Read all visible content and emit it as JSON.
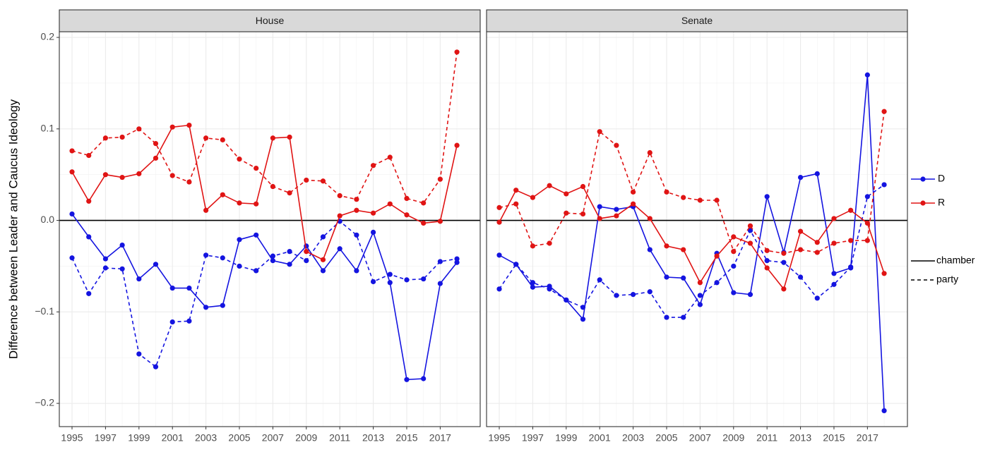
{
  "ylabel": "Difference between Leader and Caucus Ideology",
  "legend": {
    "color": [
      {
        "name": "D",
        "color": "#1414e0"
      },
      {
        "name": "R",
        "color": "#e01414"
      }
    ],
    "linetype": [
      {
        "name": "chamber",
        "dash": "solid"
      },
      {
        "name": "party",
        "dash": "dashed"
      }
    ]
  },
  "chart_data": [
    {
      "type": "line",
      "title": "House",
      "x": [
        1995,
        1996,
        1997,
        1998,
        1999,
        2000,
        2001,
        2002,
        2003,
        2004,
        2005,
        2006,
        2007,
        2008,
        2009,
        2010,
        2011,
        2012,
        2013,
        2014,
        2015,
        2016,
        2017,
        2018
      ],
      "xlim": [
        1994.24,
        2019.39
      ],
      "xticks": [
        1995,
        1997,
        1999,
        2001,
        2003,
        2005,
        2007,
        2009,
        2011,
        2013,
        2015,
        2017
      ],
      "xminorticks": [
        1996,
        1998,
        2000,
        2002,
        2004,
        2006,
        2008,
        2010,
        2012,
        2014,
        2016,
        2018
      ],
      "ylim": [
        -0.2254,
        0.2062
      ],
      "yticks": [
        {
          "value": -0.2,
          "label": "−0.2"
        },
        {
          "value": -0.1,
          "label": "−0.1"
        },
        {
          "value": 0,
          "label": "0.0"
        },
        0.1,
        0.2
      ],
      "yminorticks": [
        -0.15,
        -0.05,
        0.05,
        0.15
      ],
      "hline": 0,
      "grid": true,
      "series": [
        {
          "party": "D",
          "line": "chamber",
          "values": [
            0.007,
            -0.018,
            -0.042,
            -0.027,
            -0.064,
            -0.048,
            -0.074,
            -0.074,
            -0.095,
            -0.093,
            -0.021,
            -0.016,
            -0.044,
            -0.048,
            -0.028,
            -0.055,
            -0.031,
            -0.055,
            -0.013,
            -0.068,
            -0.174,
            -0.173,
            -0.069,
            -0.046
          ]
        },
        {
          "party": "D",
          "line": "party",
          "values": [
            -0.041,
            -0.08,
            -0.052,
            -0.053,
            -0.146,
            -0.16,
            -0.111,
            -0.11,
            -0.038,
            -0.041,
            -0.05,
            -0.055,
            -0.039,
            -0.034,
            -0.044,
            -0.018,
            -0.001,
            -0.016,
            -0.067,
            -0.059,
            -0.065,
            -0.064,
            -0.045,
            -0.042
          ]
        },
        {
          "party": "R",
          "line": "chamber",
          "values": [
            0.053,
            0.021,
            0.05,
            0.047,
            0.051,
            0.068,
            0.102,
            0.104,
            0.011,
            0.028,
            0.019,
            0.018,
            0.09,
            0.091,
            -0.034,
            -0.043,
            0.005,
            0.011,
            0.008,
            0.018,
            0.006,
            -0.003,
            -0.001,
            0.082
          ]
        },
        {
          "party": "R",
          "line": "party",
          "values": [
            0.076,
            0.071,
            0.09,
            0.091,
            0.1,
            0.084,
            0.049,
            0.042,
            0.09,
            0.088,
            0.067,
            0.057,
            0.037,
            0.03,
            0.044,
            0.043,
            0.027,
            0.023,
            0.06,
            0.069,
            0.024,
            0.019,
            0.045,
            0.184
          ]
        }
      ]
    },
    {
      "type": "line",
      "title": "Senate",
      "x": [
        1995,
        1996,
        1997,
        1998,
        1999,
        2000,
        2001,
        2002,
        2003,
        2004,
        2005,
        2006,
        2007,
        2008,
        2009,
        2010,
        2011,
        2012,
        2013,
        2014,
        2015,
        2016,
        2017,
        2018
      ],
      "xlim": [
        1994.24,
        2019.39
      ],
      "xticks": [
        1995,
        1997,
        1999,
        2001,
        2003,
        2005,
        2007,
        2009,
        2011,
        2013,
        2015,
        2017
      ],
      "xminorticks": [
        1996,
        1998,
        2000,
        2002,
        2004,
        2006,
        2008,
        2010,
        2012,
        2014,
        2016,
        2018
      ],
      "ylim": [
        -0.2254,
        0.2062
      ],
      "yticks": [
        -0.2,
        -0.1,
        0,
        0.1,
        0.2
      ],
      "yminorticks": [
        -0.15,
        -0.05,
        0.05,
        0.15
      ],
      "hline": 0,
      "grid": true,
      "series": [
        {
          "party": "D",
          "line": "chamber",
          "values": [
            -0.038,
            -0.048,
            -0.073,
            -0.072,
            -0.087,
            -0.108,
            0.015,
            0.012,
            0.015,
            -0.032,
            -0.062,
            -0.063,
            -0.092,
            -0.036,
            -0.079,
            -0.081,
            0.026,
            -0.035,
            0.047,
            0.051,
            -0.058,
            -0.052,
            0.159,
            -0.208
          ]
        },
        {
          "party": "D",
          "line": "party",
          "values": [
            -0.075,
            -0.048,
            -0.068,
            -0.075,
            -0.087,
            -0.095,
            -0.065,
            -0.082,
            -0.081,
            -0.078,
            -0.106,
            -0.106,
            -0.082,
            -0.068,
            -0.05,
            -0.011,
            -0.044,
            -0.046,
            -0.062,
            -0.085,
            -0.07,
            -0.051,
            0.026,
            0.039
          ]
        },
        {
          "party": "R",
          "line": "chamber",
          "values": [
            -0.002,
            0.033,
            0.025,
            0.038,
            0.029,
            0.037,
            0.002,
            0.005,
            0.018,
            0.002,
            -0.028,
            -0.032,
            -0.068,
            -0.039,
            -0.018,
            -0.025,
            -0.052,
            -0.075,
            -0.012,
            -0.024,
            0.002,
            0.011,
            -0.003,
            -0.058
          ]
        },
        {
          "party": "R",
          "line": "party",
          "values": [
            0.014,
            0.018,
            -0.028,
            -0.025,
            0.008,
            0.007,
            0.097,
            0.082,
            0.031,
            0.074,
            0.031,
            0.025,
            0.022,
            0.022,
            -0.034,
            -0.006,
            -0.033,
            -0.036,
            -0.032,
            -0.035,
            -0.025,
            -0.022,
            -0.022,
            0.119
          ]
        }
      ]
    }
  ]
}
